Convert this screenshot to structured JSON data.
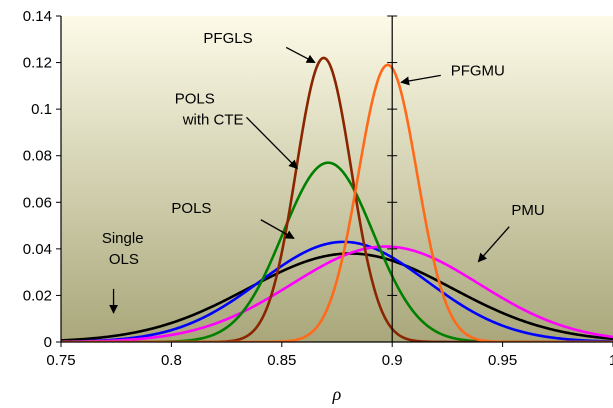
{
  "chart_data": {
    "type": "line",
    "xlabel": "ρ",
    "ylabel": "",
    "xlim": [
      0.75,
      1.0
    ],
    "ylim": [
      0,
      0.14
    ],
    "x_ticks": [
      0.75,
      0.8,
      0.85,
      0.9,
      0.95,
      1.0
    ],
    "x_tick_labels": [
      "0.75",
      "0.8",
      "0.85",
      "0.9",
      "0.95",
      "1"
    ],
    "y_ticks": [
      0,
      0.02,
      0.04,
      0.06,
      0.08,
      0.1,
      0.12,
      0.14
    ],
    "y_tick_labels": [
      "0",
      "0.02",
      "0.04",
      "0.06",
      "0.08",
      "0.1",
      "0.12",
      "0.14"
    ],
    "grid": false,
    "reference_line_x": 0.9,
    "background": {
      "top": "#fdfbe8",
      "bottom": "#a9a77a"
    },
    "series": [
      {
        "name": "Single OLS",
        "color": "#000000",
        "mean": 0.881,
        "sd": 0.0462,
        "peak_x": 0.881,
        "peak_y": 0.038
      },
      {
        "name": "POLS",
        "color": "#0000ff",
        "mean": 0.878,
        "sd": 0.0378,
        "peak_x": 0.878,
        "peak_y": 0.043
      },
      {
        "name": "PMU",
        "color": "#ff00ff",
        "mean": 0.897,
        "sd": 0.0425,
        "peak_x": 0.897,
        "peak_y": 0.041
      },
      {
        "name": "POLS with CTE",
        "color": "#008000",
        "mean": 0.871,
        "sd": 0.0205,
        "peak_x": 0.871,
        "peak_y": 0.077
      },
      {
        "name": "PFGLS",
        "color": "#8b2500",
        "mean": 0.869,
        "sd": 0.0125,
        "peak_x": 0.869,
        "peak_y": 0.122
      },
      {
        "name": "PFGMU",
        "color": "#ff6a1a",
        "mean": 0.898,
        "sd": 0.0133,
        "peak_x": 0.898,
        "peak_y": 0.119
      }
    ],
    "annotations": [
      {
        "series": "PFGLS",
        "lines": [
          "PFGLS"
        ],
        "text_x": 0.8145,
        "text_y": 0.1285,
        "arrow_from": [
          0.852,
          0.1265
        ],
        "arrow_to": [
          0.865,
          0.12
        ]
      },
      {
        "series": "PFGMU",
        "lines": [
          "PFGMU"
        ],
        "text_x": 0.9265,
        "text_y": 0.1145,
        "arrow_from": [
          0.922,
          0.1145
        ],
        "arrow_to": [
          0.904,
          0.1115
        ]
      },
      {
        "series": "POLS with CTE",
        "lines": [
          "POLS",
          "with CTE"
        ],
        "text_x": 0.8015,
        "text_y": 0.1025,
        "arrow_from": [
          0.834,
          0.0965
        ],
        "arrow_to": [
          0.857,
          0.0745
        ]
      },
      {
        "series": "POLS",
        "lines": [
          "POLS"
        ],
        "text_x": 0.8,
        "text_y": 0.0555,
        "arrow_from": [
          0.8405,
          0.0525
        ],
        "arrow_to": [
          0.8555,
          0.0445
        ]
      },
      {
        "series": "PMU",
        "lines": [
          "PMU"
        ],
        "text_x": 0.954,
        "text_y": 0.0545,
        "arrow_from": [
          0.953,
          0.0495
        ],
        "arrow_to": [
          0.939,
          0.0345
        ]
      },
      {
        "series": "Single OLS",
        "lines": [
          "Single",
          "OLS"
        ],
        "text_x": 0.7685,
        "text_y": 0.0425,
        "arrow_from": [
          0.7738,
          0.0228
        ],
        "arrow_to": [
          0.7738,
          0.0125
        ]
      }
    ]
  }
}
